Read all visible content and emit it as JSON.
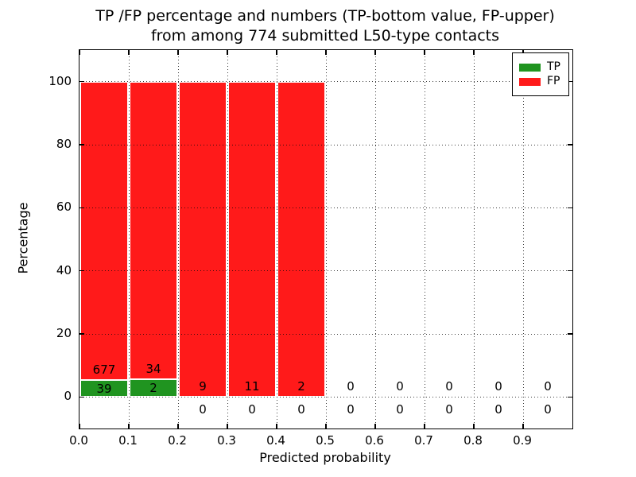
{
  "chart_data": {
    "type": "bar",
    "stacked": true,
    "title_line1": "TP /FP percentage and numbers (TP-bottom value, FP-upper)",
    "title_line2": "from among 774 submitted L50-type contacts",
    "xlabel": "Predicted probability",
    "ylabel": "Percentage",
    "total_submitted": 774,
    "xlim": [
      0.0,
      1.0
    ],
    "ylim": [
      -10,
      110
    ],
    "xticks": [
      0.0,
      0.1,
      0.2,
      0.3,
      0.4,
      0.5,
      0.6,
      0.7,
      0.8,
      0.9
    ],
    "xtick_labels": [
      "0.0",
      "0.1",
      "0.2",
      "0.3",
      "0.4",
      "0.5",
      "0.6",
      "0.7",
      "0.8",
      "0.9"
    ],
    "yticks": [
      0,
      20,
      40,
      60,
      80,
      100
    ],
    "ytick_labels": [
      "0",
      "20",
      "40",
      "60",
      "80",
      "100"
    ],
    "grid": "dotted black, both axes",
    "legend": {
      "position": "upper-right",
      "entries": [
        {
          "label": "TP",
          "color": "#209420"
        },
        {
          "label": "FP",
          "color": "#ff1a1a"
        }
      ]
    },
    "bins": [
      {
        "x_range": [
          0.0,
          0.1
        ],
        "tp": 39,
        "fp": 677
      },
      {
        "x_range": [
          0.1,
          0.2
        ],
        "tp": 2,
        "fp": 34
      },
      {
        "x_range": [
          0.2,
          0.3
        ],
        "tp": 0,
        "fp": 9
      },
      {
        "x_range": [
          0.3,
          0.4
        ],
        "tp": 0,
        "fp": 11
      },
      {
        "x_range": [
          0.4,
          0.5
        ],
        "tp": 0,
        "fp": 2
      },
      {
        "x_range": [
          0.5,
          0.6
        ],
        "tp": 0,
        "fp": 0
      },
      {
        "x_range": [
          0.6,
          0.7
        ],
        "tp": 0,
        "fp": 0
      },
      {
        "x_range": [
          0.7,
          0.8
        ],
        "tp": 0,
        "fp": 0
      },
      {
        "x_range": [
          0.8,
          0.9
        ],
        "tp": 0,
        "fp": 0
      },
      {
        "x_range": [
          0.9,
          1.0
        ],
        "tp": 0,
        "fp": 0
      }
    ]
  }
}
